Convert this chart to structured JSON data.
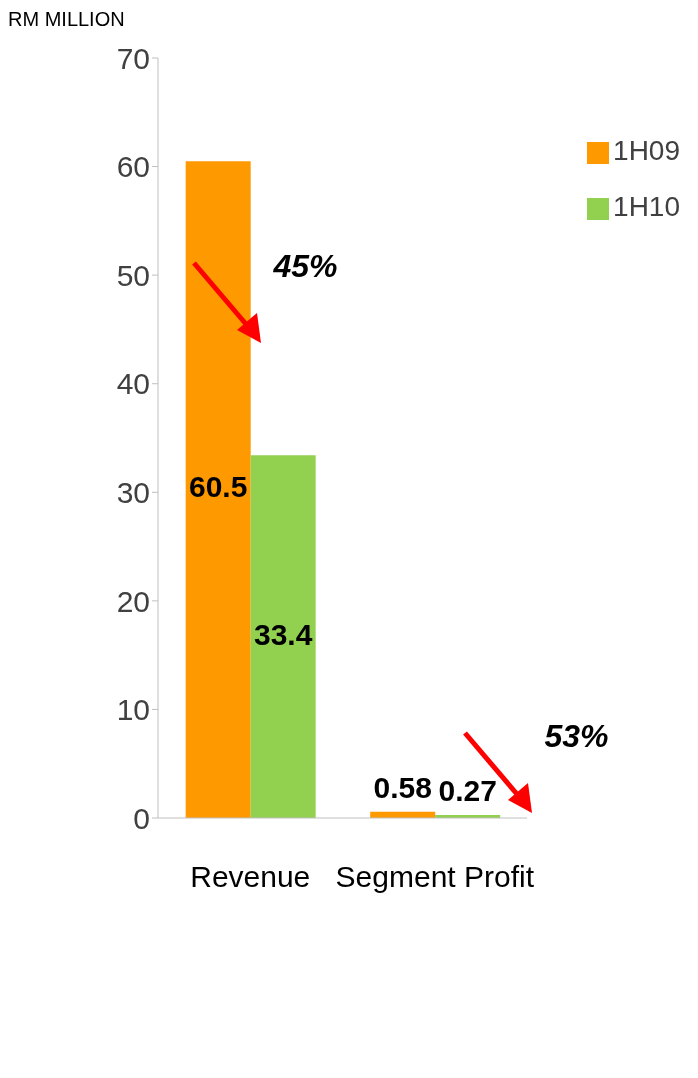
{
  "chart_data": {
    "type": "bar",
    "ylabel": "RM MILLION",
    "categories": [
      "Revenue",
      "Segment Profit"
    ],
    "series": [
      {
        "name": "1H09",
        "color": "#ff9900",
        "values": [
          60.5,
          0.58
        ]
      },
      {
        "name": "1H10",
        "color": "#92d050",
        "values": [
          33.4,
          0.27
        ]
      }
    ],
    "ylim": [
      0,
      70
    ],
    "yticks": [
      0,
      10,
      20,
      30,
      40,
      50,
      60,
      70
    ],
    "grid": false,
    "legend": "top right",
    "data_labels": true,
    "annotations": [
      "45%",
      "53%"
    ]
  }
}
